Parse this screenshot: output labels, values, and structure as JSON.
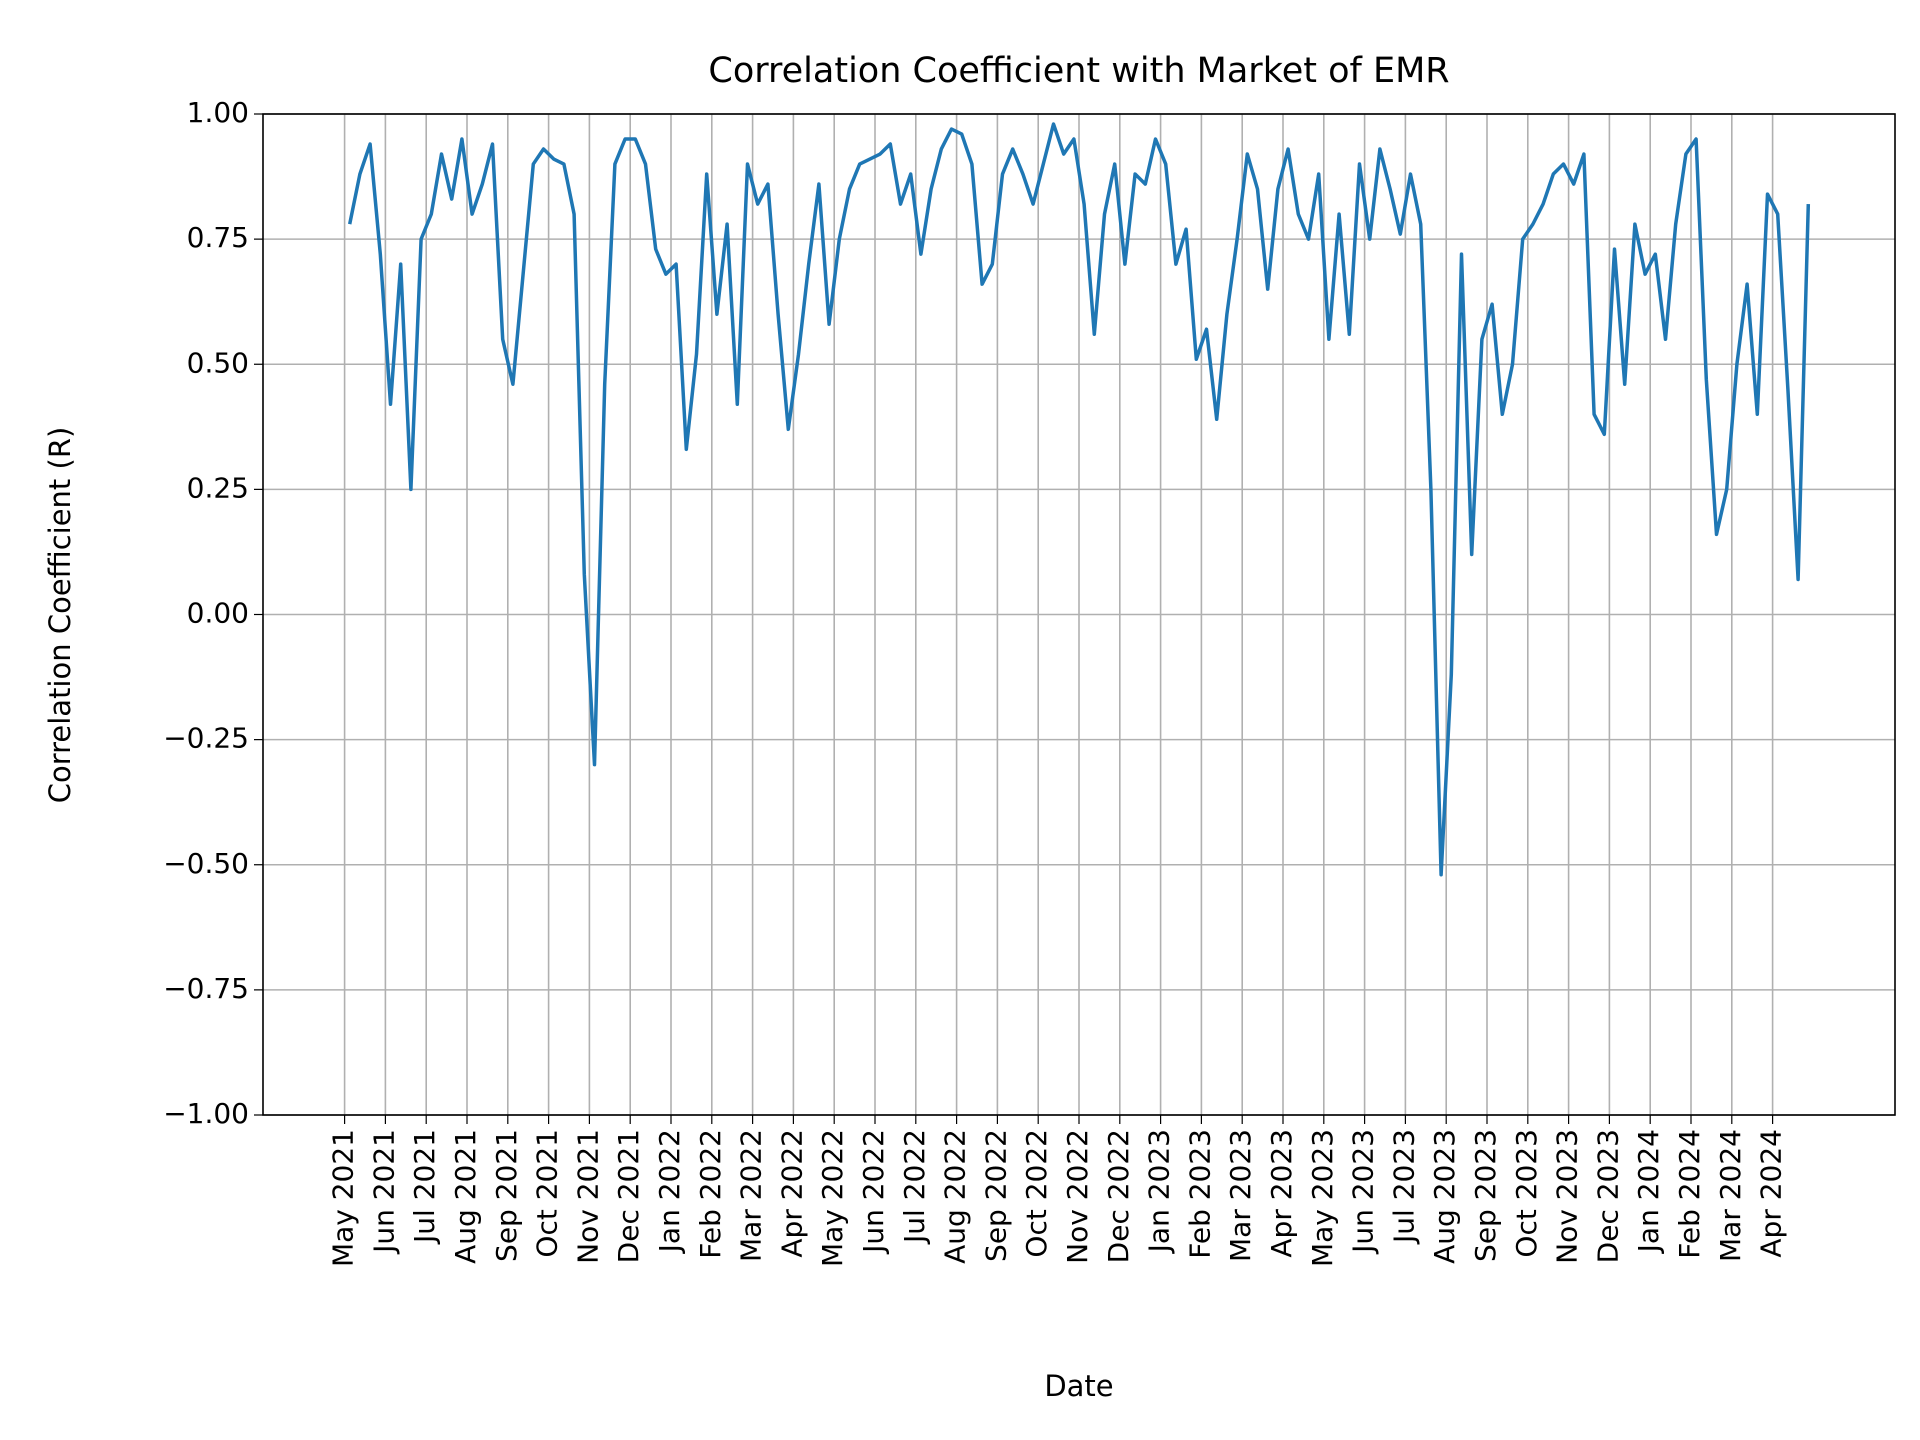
{
  "chart_data": {
    "type": "line",
    "title": "Correlation Coefficient with Market of EMR",
    "x_label": "Date",
    "y_label": "Correlation Coefficient (R)",
    "grid": true,
    "xlim": [
      "2021-03",
      "2024-07"
    ],
    "ylim": [
      -1,
      1
    ],
    "yticks": [
      {
        "value": -1,
        "label": "−1.00"
      },
      {
        "value": -0.75,
        "label": "−0.75"
      },
      {
        "value": -0.5,
        "label": "−0.50"
      },
      {
        "value": -0.25,
        "label": "−0.25"
      },
      {
        "value": 0,
        "label": "0.00"
      },
      {
        "value": 0.25,
        "label": "0.25"
      },
      {
        "value": 0.5,
        "label": "0.50"
      },
      {
        "value": 0.75,
        "label": "0.75"
      },
      {
        "value": 1,
        "label": "1.00"
      }
    ],
    "xticks": [
      {
        "value": "2021-05",
        "label": "May 2021"
      },
      {
        "value": "2021-06",
        "label": "Jun 2021"
      },
      {
        "value": "2021-07",
        "label": "Jul 2021"
      },
      {
        "value": "2021-08",
        "label": "Aug 2021"
      },
      {
        "value": "2021-09",
        "label": "Sep 2021"
      },
      {
        "value": "2021-10",
        "label": "Oct 2021"
      },
      {
        "value": "2021-11",
        "label": "Nov 2021"
      },
      {
        "value": "2021-12",
        "label": "Dec 2021"
      },
      {
        "value": "2022-01",
        "label": "Jan 2022"
      },
      {
        "value": "2022-02",
        "label": "Feb 2022"
      },
      {
        "value": "2022-03",
        "label": "Mar 2022"
      },
      {
        "value": "2022-04",
        "label": "Apr 2022"
      },
      {
        "value": "2022-05",
        "label": "May 2022"
      },
      {
        "value": "2022-06",
        "label": "Jun 2022"
      },
      {
        "value": "2022-07",
        "label": "Jul 2022"
      },
      {
        "value": "2022-08",
        "label": "Aug 2022"
      },
      {
        "value": "2022-09",
        "label": "Sep 2022"
      },
      {
        "value": "2022-10",
        "label": "Oct 2022"
      },
      {
        "value": "2022-11",
        "label": "Nov 2022"
      },
      {
        "value": "2022-12",
        "label": "Dec 2022"
      },
      {
        "value": "2023-01",
        "label": "Jan 2023"
      },
      {
        "value": "2023-02",
        "label": "Feb 2023"
      },
      {
        "value": "2023-03",
        "label": "Mar 2023"
      },
      {
        "value": "2023-04",
        "label": "Apr 2023"
      },
      {
        "value": "2023-05",
        "label": "May 2023"
      },
      {
        "value": "2023-06",
        "label": "Jun 2023"
      },
      {
        "value": "2023-07",
        "label": "Jul 2023"
      },
      {
        "value": "2023-08",
        "label": "Aug 2023"
      },
      {
        "value": "2023-09",
        "label": "Sep 2023"
      },
      {
        "value": "2023-10",
        "label": "Oct 2023"
      },
      {
        "value": "2023-11",
        "label": "Nov 2023"
      },
      {
        "value": "2023-12",
        "label": "Dec 2023"
      },
      {
        "value": "2024-01",
        "label": "Jan 2024"
      },
      {
        "value": "2024-02",
        "label": "Feb 2024"
      },
      {
        "value": "2024-03",
        "label": "Mar 2024"
      },
      {
        "value": "2024-04",
        "label": "Apr 2024"
      }
    ],
    "x": [
      "2021-05",
      "2021-05",
      "2021-05",
      "2021-05",
      "2021-06",
      "2021-06",
      "2021-06",
      "2021-06",
      "2021-07",
      "2021-07",
      "2021-07",
      "2021-07",
      "2021-08",
      "2021-08",
      "2021-08",
      "2021-08",
      "2021-09",
      "2021-09",
      "2021-09",
      "2021-09",
      "2021-10",
      "2021-10",
      "2021-10",
      "2021-10",
      "2021-11",
      "2021-11",
      "2021-11",
      "2021-11",
      "2021-12",
      "2021-12",
      "2021-12",
      "2021-12",
      "2022-01",
      "2022-01",
      "2022-01",
      "2022-01",
      "2022-02",
      "2022-02",
      "2022-02",
      "2022-02",
      "2022-03",
      "2022-03",
      "2022-03",
      "2022-03",
      "2022-04",
      "2022-04",
      "2022-04",
      "2022-04",
      "2022-05",
      "2022-05",
      "2022-05",
      "2022-05",
      "2022-06",
      "2022-06",
      "2022-06",
      "2022-06",
      "2022-07",
      "2022-07",
      "2022-07",
      "2022-07",
      "2022-08",
      "2022-08",
      "2022-08",
      "2022-08",
      "2022-09",
      "2022-09",
      "2022-09",
      "2022-09",
      "2022-10",
      "2022-10",
      "2022-10",
      "2022-10",
      "2022-11",
      "2022-11",
      "2022-11",
      "2022-11",
      "2022-12",
      "2022-12",
      "2022-12",
      "2022-12",
      "2023-01",
      "2023-01",
      "2023-01",
      "2023-01",
      "2023-02",
      "2023-02",
      "2023-02",
      "2023-02",
      "2023-03",
      "2023-03",
      "2023-03",
      "2023-03",
      "2023-04",
      "2023-04",
      "2023-04",
      "2023-04",
      "2023-05",
      "2023-05",
      "2023-05",
      "2023-05",
      "2023-06",
      "2023-06",
      "2023-06",
      "2023-06",
      "2023-07",
      "2023-07",
      "2023-07",
      "2023-07",
      "2023-08",
      "2023-08",
      "2023-08",
      "2023-08",
      "2023-09",
      "2023-09",
      "2023-09",
      "2023-09",
      "2023-10",
      "2023-10",
      "2023-10",
      "2023-10",
      "2023-11",
      "2023-11",
      "2023-11",
      "2023-11",
      "2023-12",
      "2023-12",
      "2023-12",
      "2023-12",
      "2024-01",
      "2024-01",
      "2024-01",
      "2024-01",
      "2024-02",
      "2024-02",
      "2024-02",
      "2024-02",
      "2024-03",
      "2024-03",
      "2024-03",
      "2024-03",
      "2024-04",
      "2024-04",
      "2024-04",
      "2024-04"
    ],
    "series": [
      {
        "name": "Correlation Coefficient (R)",
        "color": "#1f77b4",
        "values": [
          0.78,
          0.88,
          0.94,
          0.72,
          0.42,
          0.7,
          0.25,
          0.75,
          0.8,
          0.92,
          0.83,
          0.95,
          0.8,
          0.86,
          0.94,
          0.55,
          0.46,
          0.68,
          0.9,
          0.93,
          0.91,
          0.9,
          0.8,
          0.08,
          -0.3,
          0.46,
          0.9,
          0.95,
          0.95,
          0.9,
          0.73,
          0.68,
          0.7,
          0.33,
          0.52,
          0.88,
          0.6,
          0.78,
          0.42,
          0.9,
          0.82,
          0.86,
          0.6,
          0.37,
          0.52,
          0.7,
          0.86,
          0.58,
          0.75,
          0.85,
          0.9,
          0.91,
          0.92,
          0.94,
          0.82,
          0.88,
          0.72,
          0.85,
          0.93,
          0.97,
          0.96,
          0.9,
          0.66,
          0.7,
          0.88,
          0.93,
          0.88,
          0.82,
          0.9,
          0.98,
          0.92,
          0.95,
          0.82,
          0.56,
          0.8,
          0.9,
          0.7,
          0.88,
          0.86,
          0.95,
          0.9,
          0.7,
          0.77,
          0.51,
          0.57,
          0.39,
          0.6,
          0.75,
          0.92,
          0.85,
          0.65,
          0.85,
          0.93,
          0.8,
          0.75,
          0.88,
          0.55,
          0.8,
          0.56,
          0.9,
          0.75,
          0.93,
          0.85,
          0.76,
          0.88,
          0.78,
          0.25,
          -0.52,
          -0.12,
          0.72,
          0.12,
          0.55,
          0.62,
          0.4,
          0.5,
          0.75,
          0.78,
          0.82,
          0.88,
          0.9,
          0.86,
          0.92,
          0.4,
          0.36,
          0.73,
          0.46,
          0.78,
          0.68,
          0.72,
          0.55,
          0.78,
          0.92,
          0.95,
          0.47,
          0.16,
          0.25,
          0.5,
          0.66,
          0.4,
          0.84,
          0.8,
          0.45,
          0.07,
          0.82
        ]
      }
    ]
  }
}
